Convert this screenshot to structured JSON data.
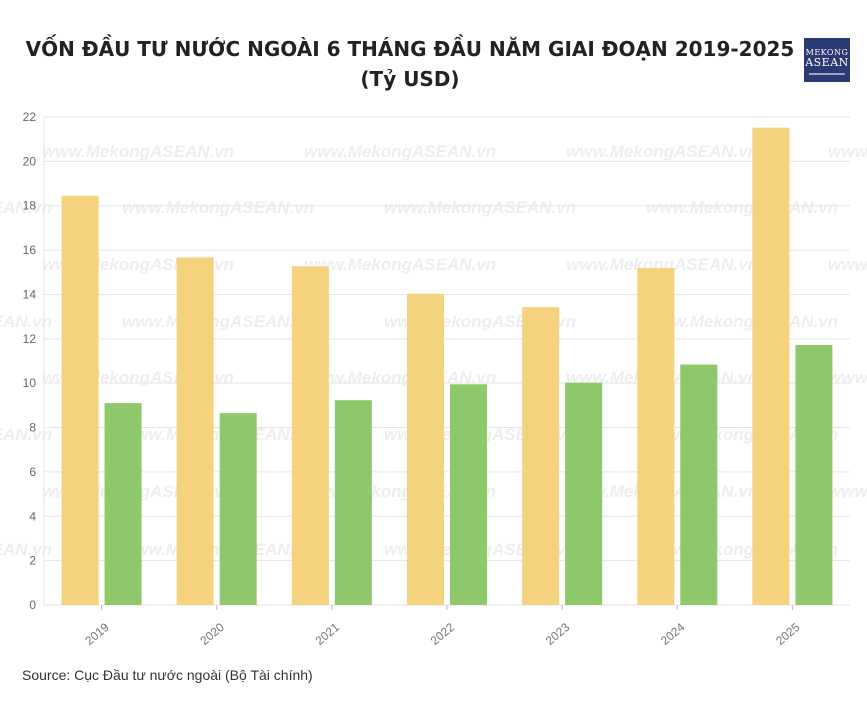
{
  "logo": {
    "line1": "MEKONG",
    "line2": "ASEAN"
  },
  "watermark": "www.MekongASEAN.vn",
  "source": "Source: Cục Đầu tư nước ngoài (Bộ Tài chính)",
  "colors": {
    "series1": "#f5d27e",
    "series2": "#8dc96a",
    "grid": "#e6e6e6"
  },
  "chart_data": {
    "type": "bar",
    "title": "VỐN ĐẦU TƯ NƯỚC NGOÀI 6 THÁNG ĐẦU NĂM GIAI ĐOẠN 2019-2025 (Tỷ USD)",
    "xlabel": "",
    "ylabel": "",
    "ylim": [
      0,
      22
    ],
    "yticks": [
      0,
      2,
      4,
      6,
      8,
      10,
      12,
      14,
      16,
      18,
      20,
      22
    ],
    "grid": true,
    "legend": "none",
    "categories": [
      "2019",
      "2020",
      "2021",
      "2022",
      "2023",
      "2024",
      "2025"
    ],
    "series": [
      {
        "values": [
          18.45,
          15.67,
          15.27,
          14.03,
          13.43,
          15.19,
          21.52
        ]
      },
      {
        "values": [
          9.1,
          8.65,
          9.23,
          9.95,
          10.02,
          10.84,
          11.72
        ]
      }
    ]
  }
}
